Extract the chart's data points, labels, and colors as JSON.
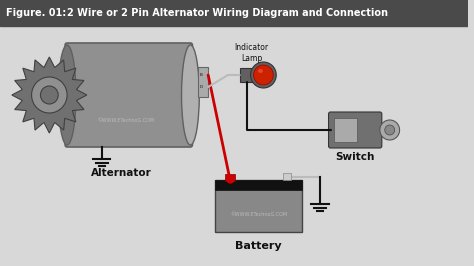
{
  "title_fig": "Figure. 01:",
  "title_main": "2 Wire or 2 Pin Alternator Wiring Diagram and Connection",
  "title_bg": "#4a4a4a",
  "title_fg": "#ffffff",
  "bg_color": "#d8d8d8",
  "watermark_alt": "©WWW.ETechnoG.COM",
  "watermark_bat": "©WWW.ETechnoG.COM",
  "label_alternator": "Alternator",
  "label_battery": "Battery",
  "label_switch": "Switch",
  "label_indicator": "Indicator\nLamp",
  "alt_body_color": "#909090",
  "alt_body_edge": "#606060",
  "alt_cap_color": "#b0b0b0",
  "pulley_color": "#707070",
  "pulley_edge": "#404040",
  "pulley_inner_color": "#909090",
  "battery_body_color": "#888888",
  "battery_top_color": "#111111",
  "battery_terminal_pos": "#cc0000",
  "battery_terminal_neg": "#aaaaaa",
  "switch_color": "#707070",
  "switch_light_color": "#aaaaaa",
  "lamp_body_color": "#606060",
  "lamp_lens_color": "#cc2200",
  "lamp_rim_color": "#404040",
  "wire_red": "#cc0000",
  "wire_black": "#111111",
  "wire_gray": "#bbbbbb",
  "ground_color": "#111111",
  "junction_color": "#cc0000"
}
